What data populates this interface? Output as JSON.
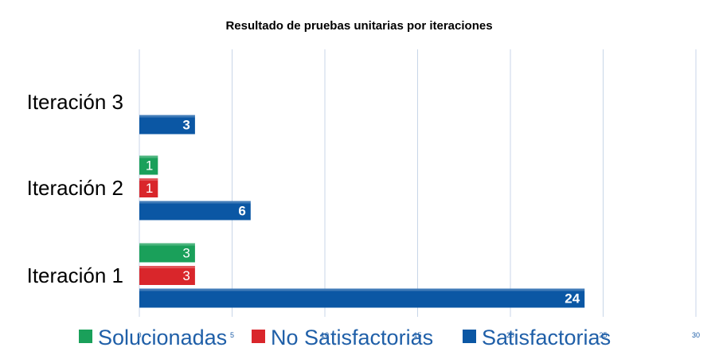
{
  "chart_data": {
    "type": "bar",
    "orientation": "horizontal",
    "title": "Resultado de pruebas unitarias por iteraciones",
    "categories": [
      "Iteración 3",
      "Iteración 2",
      "Iteración 1"
    ],
    "series": [
      {
        "name": "Solucionadas",
        "color": "#1aa05a",
        "values": [
          null,
          1,
          3
        ]
      },
      {
        "name": "No Satisfactorias",
        "color": "#d9262b",
        "values": [
          null,
          1,
          3
        ]
      },
      {
        "name": "Satisfactorias",
        "color": "#0b57a4",
        "values": [
          3,
          6,
          24
        ]
      }
    ],
    "xlim": [
      0,
      30
    ],
    "xticks": [
      "0",
      "5",
      "10",
      "15",
      "20",
      "25",
      "30"
    ],
    "grid": "vertical",
    "legend": "bottom",
    "legend_text_color": "#1f5fa8"
  }
}
